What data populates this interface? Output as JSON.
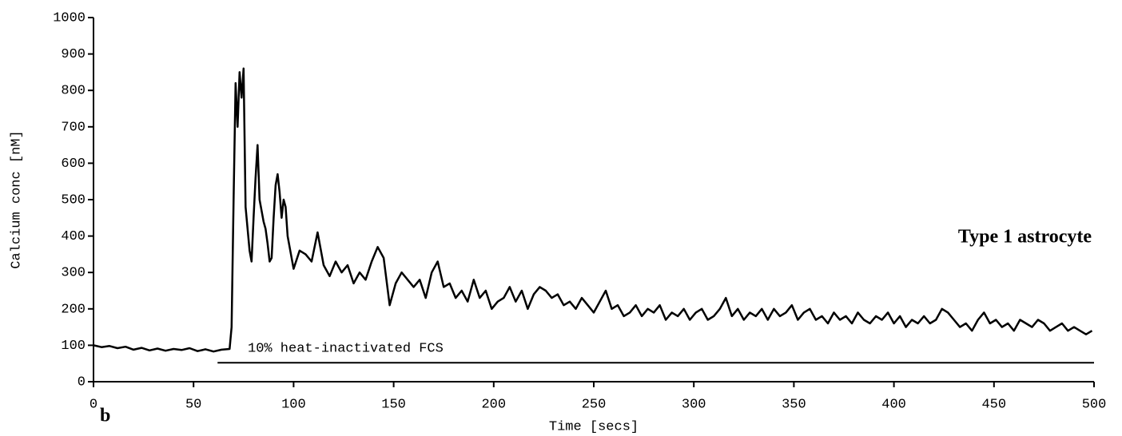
{
  "chart_data": {
    "type": "line",
    "xlabel": "Time [secs]",
    "ylabel": "Calcium conc [nM]",
    "annotation": "Type 1 astrocyte",
    "panel_label": "b",
    "stimulus": {
      "label": "10% heat-inactivated FCS",
      "x": [
        62,
        500
      ],
      "y": 52
    },
    "xlim": [
      0,
      500
    ],
    "xticks": [
      0,
      50,
      100,
      150,
      200,
      250,
      300,
      350,
      400,
      450,
      500
    ],
    "ylim": [
      0,
      1000
    ],
    "yticks": [
      0,
      100,
      200,
      300,
      400,
      500,
      600,
      700,
      800,
      900,
      1000
    ],
    "color": "#000000",
    "x": [
      0,
      4,
      8,
      12,
      16,
      20,
      24,
      28,
      32,
      36,
      40,
      44,
      48,
      52,
      56,
      60,
      64,
      68,
      69,
      70,
      71,
      72,
      73,
      74,
      75,
      76,
      77,
      78,
      79,
      80,
      81,
      82,
      83,
      84,
      85,
      86,
      87,
      88,
      89,
      90,
      91,
      92,
      93,
      94,
      95,
      96,
      97,
      98,
      99,
      100,
      103,
      106,
      109,
      112,
      115,
      118,
      121,
      124,
      127,
      130,
      133,
      136,
      139,
      142,
      145,
      148,
      151,
      154,
      157,
      160,
      163,
      166,
      169,
      172,
      175,
      178,
      181,
      184,
      187,
      190,
      193,
      196,
      199,
      202,
      205,
      208,
      211,
      214,
      217,
      220,
      223,
      226,
      229,
      232,
      235,
      238,
      241,
      244,
      247,
      250,
      253,
      256,
      259,
      262,
      265,
      268,
      271,
      274,
      277,
      280,
      283,
      286,
      289,
      292,
      295,
      298,
      301,
      304,
      307,
      310,
      313,
      316,
      319,
      322,
      325,
      328,
      331,
      334,
      337,
      340,
      343,
      346,
      349,
      352,
      355,
      358,
      361,
      364,
      367,
      370,
      373,
      376,
      379,
      382,
      385,
      388,
      391,
      394,
      397,
      400,
      403,
      406,
      409,
      412,
      415,
      418,
      421,
      424,
      427,
      430,
      433,
      436,
      439,
      442,
      445,
      448,
      451,
      454,
      457,
      460,
      463,
      466,
      469,
      472,
      475,
      478,
      481,
      484,
      487,
      490,
      493,
      496,
      499
    ],
    "values": [
      100,
      95,
      98,
      92,
      96,
      88,
      93,
      86,
      91,
      85,
      90,
      87,
      92,
      84,
      89,
      83,
      88,
      90,
      150,
      500,
      820,
      700,
      850,
      780,
      860,
      480,
      420,
      360,
      330,
      450,
      560,
      650,
      500,
      470,
      440,
      420,
      380,
      330,
      340,
      450,
      540,
      570,
      520,
      450,
      500,
      480,
      400,
      370,
      340,
      310,
      360,
      350,
      330,
      410,
      320,
      290,
      330,
      300,
      320,
      270,
      300,
      280,
      330,
      370,
      340,
      210,
      270,
      300,
      280,
      260,
      280,
      230,
      300,
      330,
      260,
      270,
      230,
      250,
      220,
      280,
      230,
      250,
      200,
      220,
      230,
      260,
      220,
      250,
      200,
      240,
      260,
      250,
      230,
      240,
      210,
      220,
      200,
      230,
      210,
      190,
      220,
      250,
      200,
      210,
      180,
      190,
      210,
      180,
      200,
      190,
      210,
      170,
      190,
      180,
      200,
      170,
      190,
      200,
      170,
      180,
      200,
      230,
      180,
      200,
      170,
      190,
      180,
      200,
      170,
      200,
      180,
      190,
      210,
      170,
      190,
      200,
      170,
      180,
      160,
      190,
      170,
      180,
      160,
      190,
      170,
      160,
      180,
      170,
      190,
      160,
      180,
      150,
      170,
      160,
      180,
      160,
      170,
      200,
      190,
      170,
      150,
      160,
      140,
      170,
      190,
      160,
      170,
      150,
      160,
      140,
      170,
      160,
      150,
      170,
      160,
      140,
      150,
      160,
      140,
      150,
      140,
      130,
      140
    ]
  }
}
